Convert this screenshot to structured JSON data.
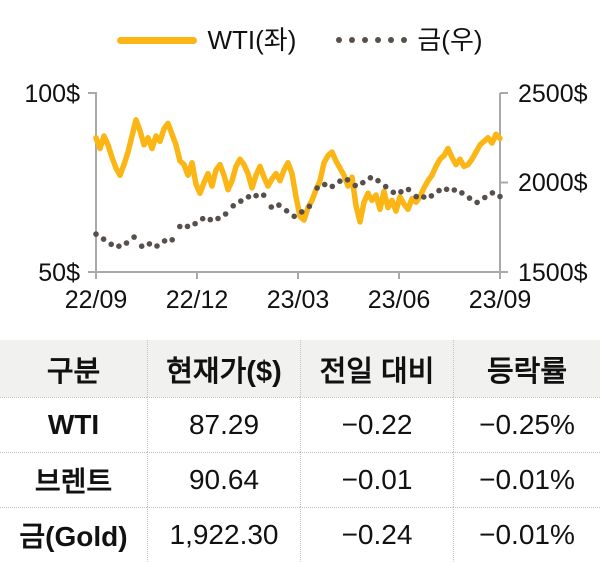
{
  "legend": {
    "items": [
      {
        "label": "WTI(좌)",
        "marker": "line",
        "color": "#FBB615"
      },
      {
        "label": "금(우)",
        "marker": "dots",
        "color": "#57504A"
      }
    ]
  },
  "chart_data": {
    "type": "line",
    "x_tick_labels": [
      "22/09",
      "22/12",
      "23/03",
      "23/06",
      "23/09"
    ],
    "left_axis": {
      "min": 50,
      "max": 100,
      "tick_labels": [
        "100$",
        "50$"
      ]
    },
    "right_axis": {
      "min": 1500,
      "max": 2500,
      "tick_labels": [
        "2500$",
        "2000$",
        "1500$"
      ]
    },
    "grid": false,
    "legend_position": "top",
    "series": [
      {
        "name": "WTI(좌)",
        "axis": "left",
        "style": "solid",
        "color": "#FBB615",
        "values": [
          87.5,
          84.5,
          88.0,
          85.5,
          82.0,
          79.0,
          77.0,
          80.0,
          83.5,
          88.0,
          92.5,
          89.5,
          85.5,
          87.5,
          84.5,
          88.0,
          86.5,
          90.0,
          91.5,
          88.5,
          85.5,
          81.0,
          80.0,
          77.0,
          80.5,
          74.5,
          72.0,
          75.0,
          77.5,
          74.0,
          78.5,
          80.0,
          77.0,
          73.0,
          75.5,
          79.5,
          81.5,
          80.0,
          77.5,
          73.5,
          77.0,
          79.5,
          76.5,
          74.0,
          76.0,
          77.5,
          75.5,
          78.5,
          80.5,
          77.5,
          71.0,
          65.5,
          64.5,
          68.0,
          70.0,
          73.0,
          75.5,
          80.5,
          82.5,
          83.5,
          81.0,
          79.0,
          77.0,
          74.0,
          76.5,
          68.5,
          64.0,
          69.5,
          72.0,
          70.0,
          71.5,
          67.5,
          72.5,
          68.0,
          70.0,
          67.0,
          71.0,
          69.0,
          67.5,
          70.5,
          69.5,
          71.0,
          73.5,
          75.5,
          77.0,
          79.5,
          81.5,
          82.5,
          84.5,
          82.0,
          80.0,
          81.5,
          79.5,
          80.0,
          81.5,
          83.5,
          85.5,
          86.5,
          87.5,
          86.0,
          88.5,
          87.3
        ]
      },
      {
        "name": "금(우)",
        "axis": "right",
        "style": "dotted",
        "color": "#57504A",
        "values": [
          1712,
          1684,
          1655,
          1644,
          1662,
          1695,
          1644,
          1657,
          1645,
          1674,
          1680,
          1754,
          1755,
          1770,
          1798,
          1793,
          1799,
          1824,
          1870,
          1896,
          1920,
          1926,
          1929,
          1863,
          1874,
          1842,
          1811,
          1836,
          1867,
          1969,
          1989,
          1978,
          2007,
          2015,
          1983,
          1999,
          2026,
          2010,
          1977,
          1945,
          1948,
          1961,
          1921,
          1919,
          1925,
          1955,
          1962,
          1958,
          1942,
          1913,
          1889,
          1916,
          1942,
          1922
        ]
      }
    ]
  },
  "table": {
    "headers": [
      "구분",
      "현재가($)",
      "전일 대비",
      "등락률"
    ],
    "rows": [
      {
        "name": "WTI",
        "price": "87.29",
        "change": "−0.22",
        "pct": "−0.25%"
      },
      {
        "name": "브렌트",
        "price": "90.64",
        "change": "−0.01",
        "pct": "−0.01%"
      },
      {
        "name": "금(Gold)",
        "price": "1,922.30",
        "change": "−0.24",
        "pct": "−0.01%"
      }
    ]
  },
  "colors": {
    "wti_line": "#FBB615",
    "gold_dots": "#57504A",
    "axis": "#A9A9A9",
    "table_header_bg": "#F1F1EF",
    "table_border": "#C7C1BA",
    "text": "#111111"
  }
}
